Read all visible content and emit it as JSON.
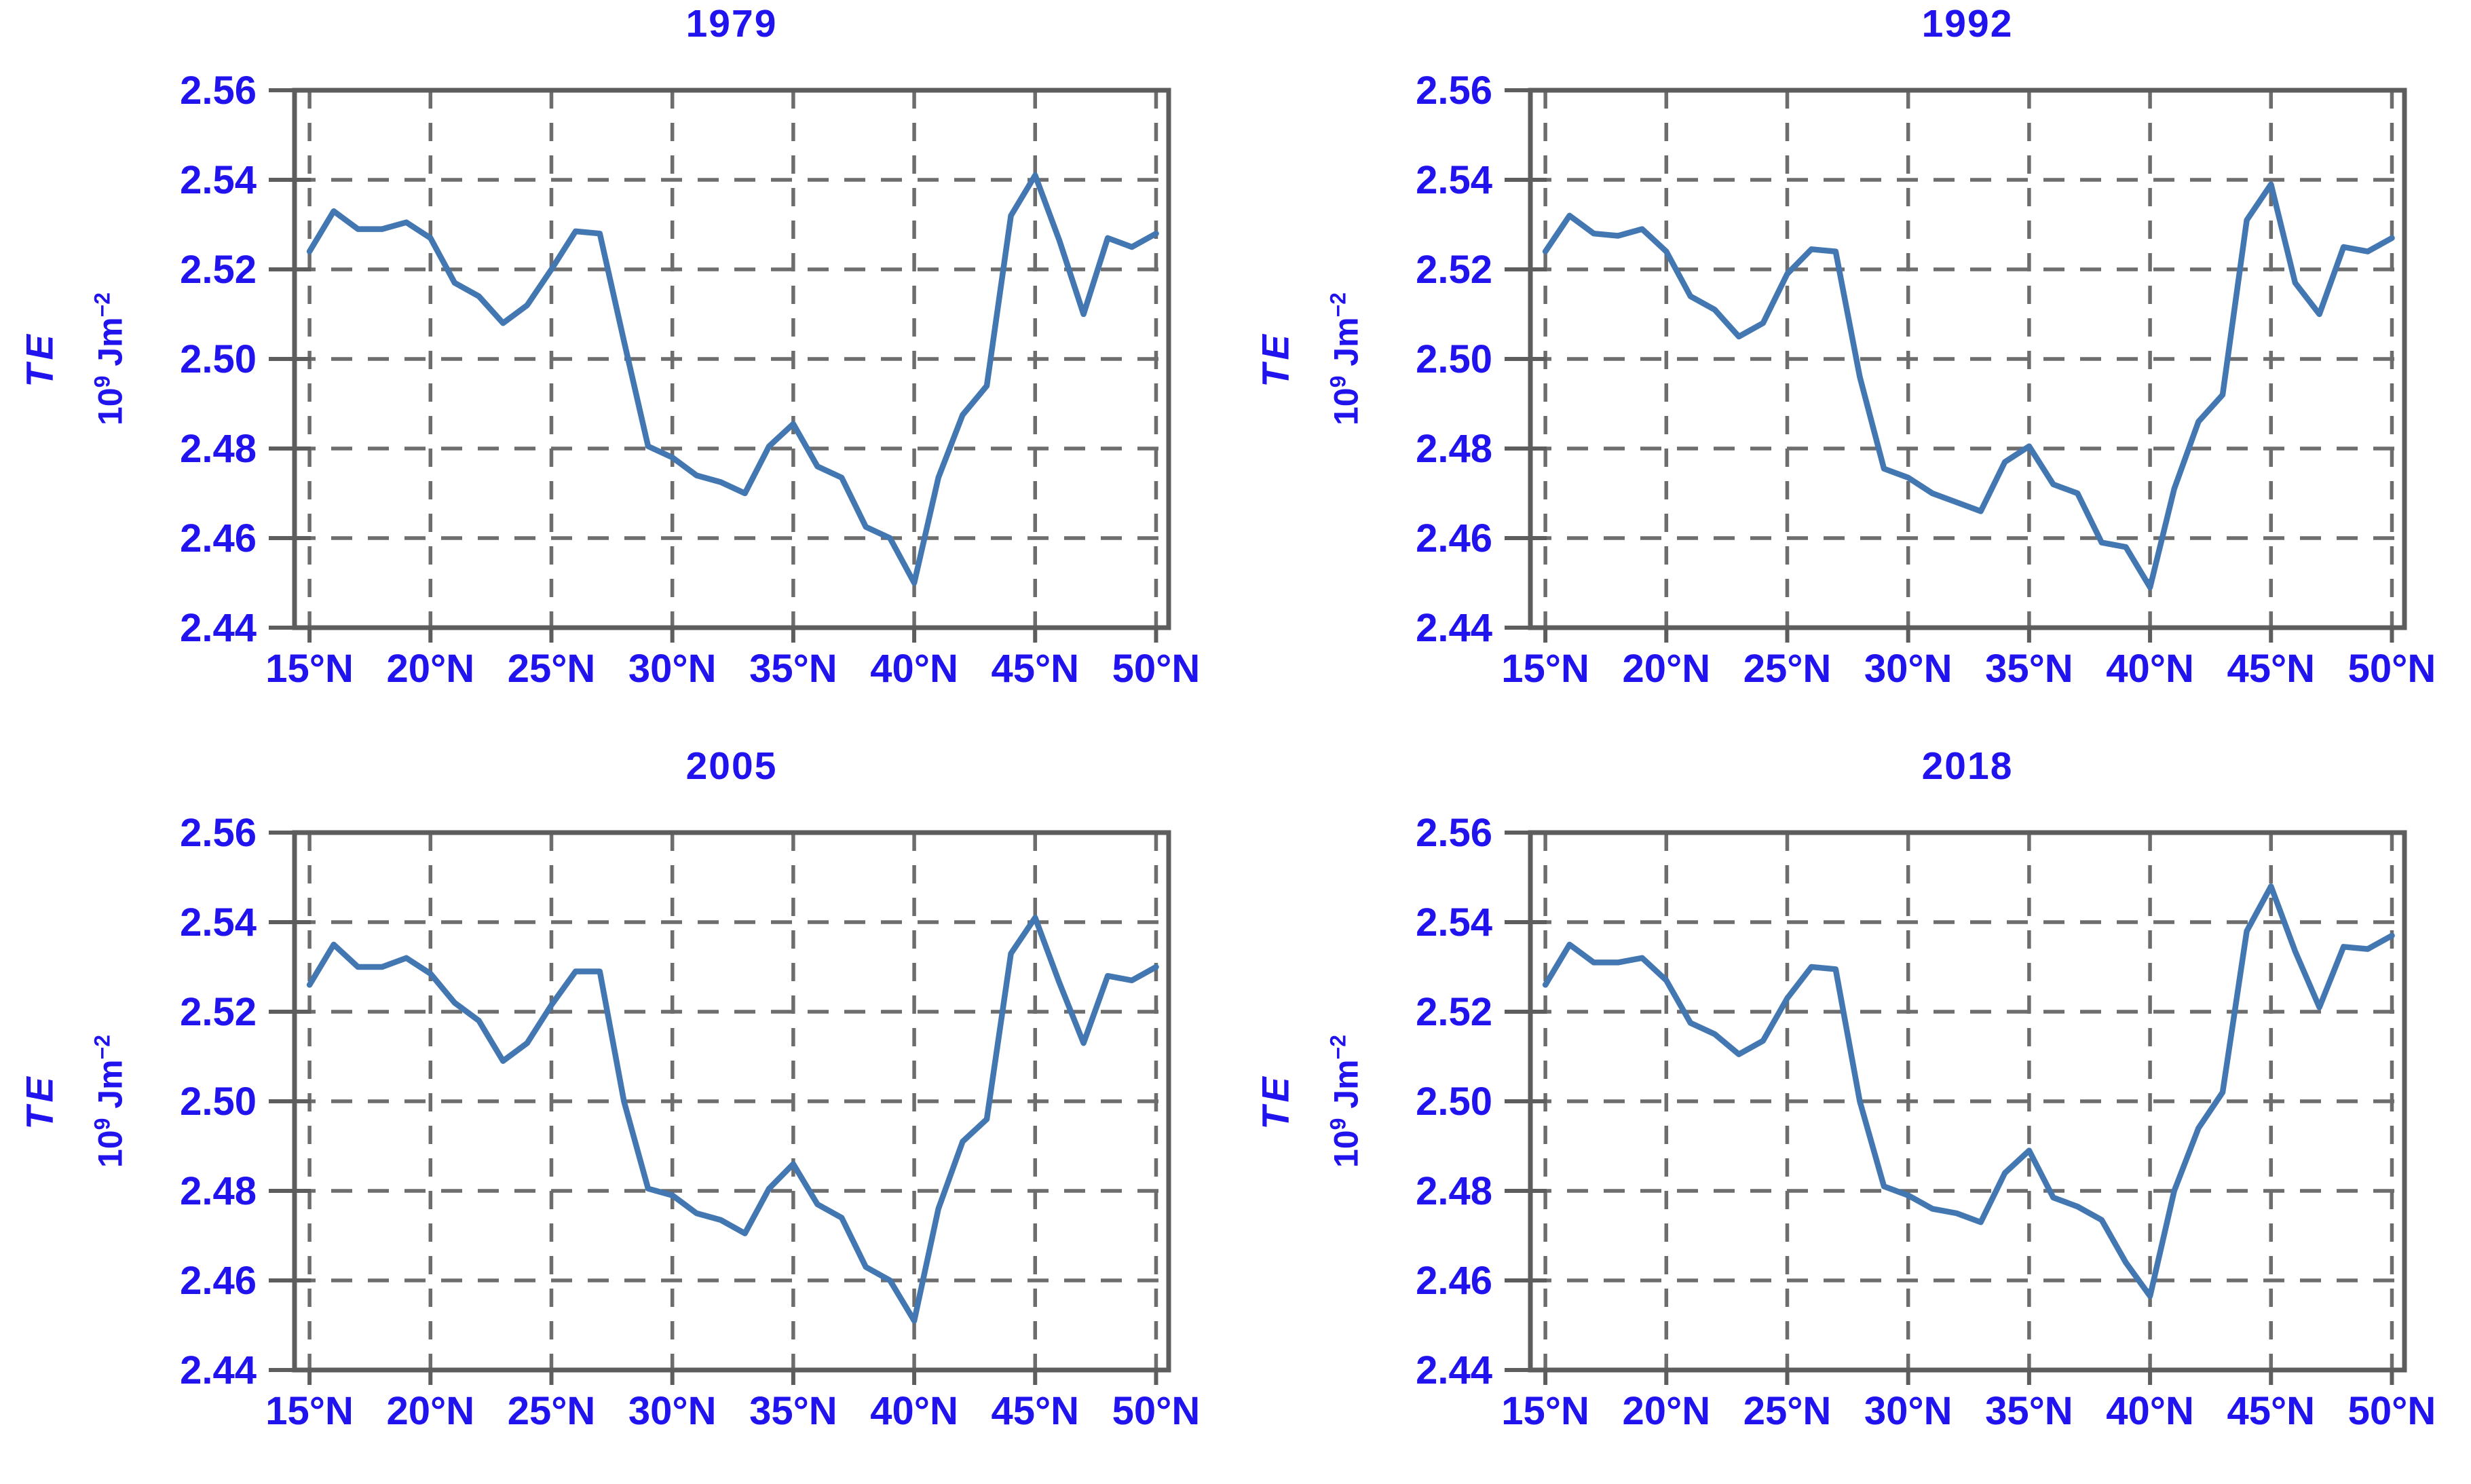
{
  "figure": {
    "background_color": "#ffffff",
    "text_color": "#2013ee",
    "line_color": "#4377b2",
    "grid_color": "#6d6d6d",
    "frame_color": "#5d5d5d"
  },
  "chart_data": [
    {
      "type": "line",
      "title": "1979",
      "ylabel_var": "TE",
      "ylabel_unit": {
        "base1": "10",
        "sup1": "9",
        "base2": " Jm",
        "sup2": "−2"
      },
      "xlim": [
        14.38,
        50.52
      ],
      "ylim": [
        2.44,
        2.56
      ],
      "grid": true,
      "x_ticks": [
        {
          "value": 15,
          "label": "15°N"
        },
        {
          "value": 20,
          "label": "20°N"
        },
        {
          "value": 25,
          "label": "25°N"
        },
        {
          "value": 30,
          "label": "30°N"
        },
        {
          "value": 35,
          "label": "35°N"
        },
        {
          "value": 40,
          "label": "40°N"
        },
        {
          "value": 45,
          "label": "45°N"
        },
        {
          "value": 50,
          "label": "50°N"
        }
      ],
      "y_ticks": [
        {
          "value": 2.56,
          "label": "2.56"
        },
        {
          "value": 2.54,
          "label": "2.54"
        },
        {
          "value": 2.52,
          "label": "2.52"
        },
        {
          "value": 2.5,
          "label": "2.50"
        },
        {
          "value": 2.48,
          "label": "2.48"
        },
        {
          "value": 2.46,
          "label": "2.46"
        },
        {
          "value": 2.44,
          "label": "2.44"
        }
      ],
      "x": [
        15,
        16,
        17,
        18,
        19,
        20,
        21,
        22,
        23,
        24,
        25,
        26,
        27,
        28,
        29,
        30,
        31,
        32,
        33,
        34,
        35,
        36,
        37,
        38,
        39,
        40,
        41,
        42,
        43,
        44,
        45,
        46,
        47,
        48,
        49,
        50
      ],
      "values": [
        2.524,
        2.533,
        2.529,
        2.529,
        2.5305,
        2.527,
        2.517,
        2.514,
        2.508,
        2.512,
        2.52,
        2.5285,
        2.528,
        2.504,
        2.4805,
        2.478,
        2.474,
        2.4725,
        2.47,
        2.4805,
        2.4855,
        2.476,
        2.4735,
        2.4625,
        2.46,
        2.45,
        2.4735,
        2.4875,
        2.494,
        2.532,
        2.541,
        2.5265,
        2.51,
        2.527,
        2.525,
        2.528
      ]
    },
    {
      "type": "line",
      "title": "1992",
      "ylabel_var": "TE",
      "ylabel_unit": {
        "base1": "10",
        "sup1": "9",
        "base2": " Jm",
        "sup2": "−2"
      },
      "xlim": [
        14.38,
        50.52
      ],
      "ylim": [
        2.44,
        2.56
      ],
      "grid": true,
      "x_ticks": [
        {
          "value": 15,
          "label": "15°N"
        },
        {
          "value": 20,
          "label": "20°N"
        },
        {
          "value": 25,
          "label": "25°N"
        },
        {
          "value": 30,
          "label": "30°N"
        },
        {
          "value": 35,
          "label": "35°N"
        },
        {
          "value": 40,
          "label": "40°N"
        },
        {
          "value": 45,
          "label": "45°N"
        },
        {
          "value": 50,
          "label": "50°N"
        }
      ],
      "y_ticks": [
        {
          "value": 2.56,
          "label": "2.56"
        },
        {
          "value": 2.54,
          "label": "2.54"
        },
        {
          "value": 2.52,
          "label": "2.52"
        },
        {
          "value": 2.5,
          "label": "2.50"
        },
        {
          "value": 2.48,
          "label": "2.48"
        },
        {
          "value": 2.46,
          "label": "2.46"
        },
        {
          "value": 2.44,
          "label": "2.44"
        }
      ],
      "x": [
        15,
        16,
        17,
        18,
        19,
        20,
        21,
        22,
        23,
        24,
        25,
        26,
        27,
        28,
        29,
        30,
        31,
        32,
        33,
        34,
        35,
        36,
        37,
        38,
        39,
        40,
        41,
        42,
        43,
        44,
        45,
        46,
        47,
        48,
        49,
        50
      ],
      "values": [
        2.524,
        2.532,
        2.528,
        2.5275,
        2.529,
        2.524,
        2.514,
        2.511,
        2.505,
        2.508,
        2.519,
        2.5245,
        2.524,
        2.496,
        2.4755,
        2.4735,
        2.47,
        2.468,
        2.466,
        2.477,
        2.4805,
        2.472,
        2.47,
        2.459,
        2.458,
        2.449,
        2.471,
        2.486,
        2.492,
        2.531,
        2.539,
        2.517,
        2.51,
        2.525,
        2.524,
        2.527
      ]
    },
    {
      "type": "line",
      "title": "2005",
      "ylabel_var": "TE",
      "ylabel_unit": {
        "base1": "10",
        "sup1": "9",
        "base2": " Jm",
        "sup2": "−2"
      },
      "xlim": [
        14.38,
        50.52
      ],
      "ylim": [
        2.44,
        2.56
      ],
      "grid": true,
      "x_ticks": [
        {
          "value": 15,
          "label": "15°N"
        },
        {
          "value": 20,
          "label": "20°N"
        },
        {
          "value": 25,
          "label": "25°N"
        },
        {
          "value": 30,
          "label": "30°N"
        },
        {
          "value": 35,
          "label": "35°N"
        },
        {
          "value": 40,
          "label": "40°N"
        },
        {
          "value": 45,
          "label": "45°N"
        },
        {
          "value": 50,
          "label": "50°N"
        }
      ],
      "y_ticks": [
        {
          "value": 2.56,
          "label": "2.56"
        },
        {
          "value": 2.54,
          "label": "2.54"
        },
        {
          "value": 2.52,
          "label": "2.52"
        },
        {
          "value": 2.5,
          "label": "2.50"
        },
        {
          "value": 2.48,
          "label": "2.48"
        },
        {
          "value": 2.46,
          "label": "2.46"
        },
        {
          "value": 2.44,
          "label": "2.44"
        }
      ],
      "x": [
        15,
        16,
        17,
        18,
        19,
        20,
        21,
        22,
        23,
        24,
        25,
        26,
        27,
        28,
        29,
        30,
        31,
        32,
        33,
        34,
        35,
        36,
        37,
        38,
        39,
        40,
        41,
        42,
        43,
        44,
        45,
        46,
        47,
        48,
        49,
        50
      ],
      "values": [
        2.526,
        2.535,
        2.53,
        2.53,
        2.532,
        2.5285,
        2.522,
        2.518,
        2.509,
        2.513,
        2.5215,
        2.529,
        2.529,
        2.5,
        2.4805,
        2.479,
        2.475,
        2.4735,
        2.4705,
        2.4805,
        2.486,
        2.477,
        2.474,
        2.463,
        2.46,
        2.451,
        2.476,
        2.491,
        2.496,
        2.533,
        2.541,
        2.5265,
        2.513,
        2.528,
        2.527,
        2.53
      ]
    },
    {
      "type": "line",
      "title": "2018",
      "ylabel_var": "TE",
      "ylabel_unit": {
        "base1": "10",
        "sup1": "9",
        "base2": " Jm",
        "sup2": "−2"
      },
      "xlim": [
        14.38,
        50.52
      ],
      "ylim": [
        2.44,
        2.56
      ],
      "grid": true,
      "x_ticks": [
        {
          "value": 15,
          "label": "15°N"
        },
        {
          "value": 20,
          "label": "20°N"
        },
        {
          "value": 25,
          "label": "25°N"
        },
        {
          "value": 30,
          "label": "30°N"
        },
        {
          "value": 35,
          "label": "35°N"
        },
        {
          "value": 40,
          "label": "40°N"
        },
        {
          "value": 45,
          "label": "45°N"
        },
        {
          "value": 50,
          "label": "50°N"
        }
      ],
      "y_ticks": [
        {
          "value": 2.56,
          "label": "2.56"
        },
        {
          "value": 2.54,
          "label": "2.54"
        },
        {
          "value": 2.52,
          "label": "2.52"
        },
        {
          "value": 2.5,
          "label": "2.50"
        },
        {
          "value": 2.48,
          "label": "2.48"
        },
        {
          "value": 2.46,
          "label": "2.46"
        },
        {
          "value": 2.44,
          "label": "2.44"
        }
      ],
      "x": [
        15,
        16,
        17,
        18,
        19,
        20,
        21,
        22,
        23,
        24,
        25,
        26,
        27,
        28,
        29,
        30,
        31,
        32,
        33,
        34,
        35,
        36,
        37,
        38,
        39,
        40,
        41,
        42,
        43,
        44,
        45,
        46,
        47,
        48,
        49,
        50
      ],
      "values": [
        2.526,
        2.535,
        2.531,
        2.531,
        2.532,
        2.527,
        2.5175,
        2.515,
        2.5105,
        2.5135,
        2.523,
        2.53,
        2.5295,
        2.5,
        2.481,
        2.479,
        2.476,
        2.475,
        2.473,
        2.484,
        2.489,
        2.4785,
        2.4765,
        2.4735,
        2.464,
        2.4565,
        2.48,
        2.494,
        2.502,
        2.538,
        2.548,
        2.5335,
        2.521,
        2.5345,
        2.534,
        2.537
      ]
    }
  ]
}
